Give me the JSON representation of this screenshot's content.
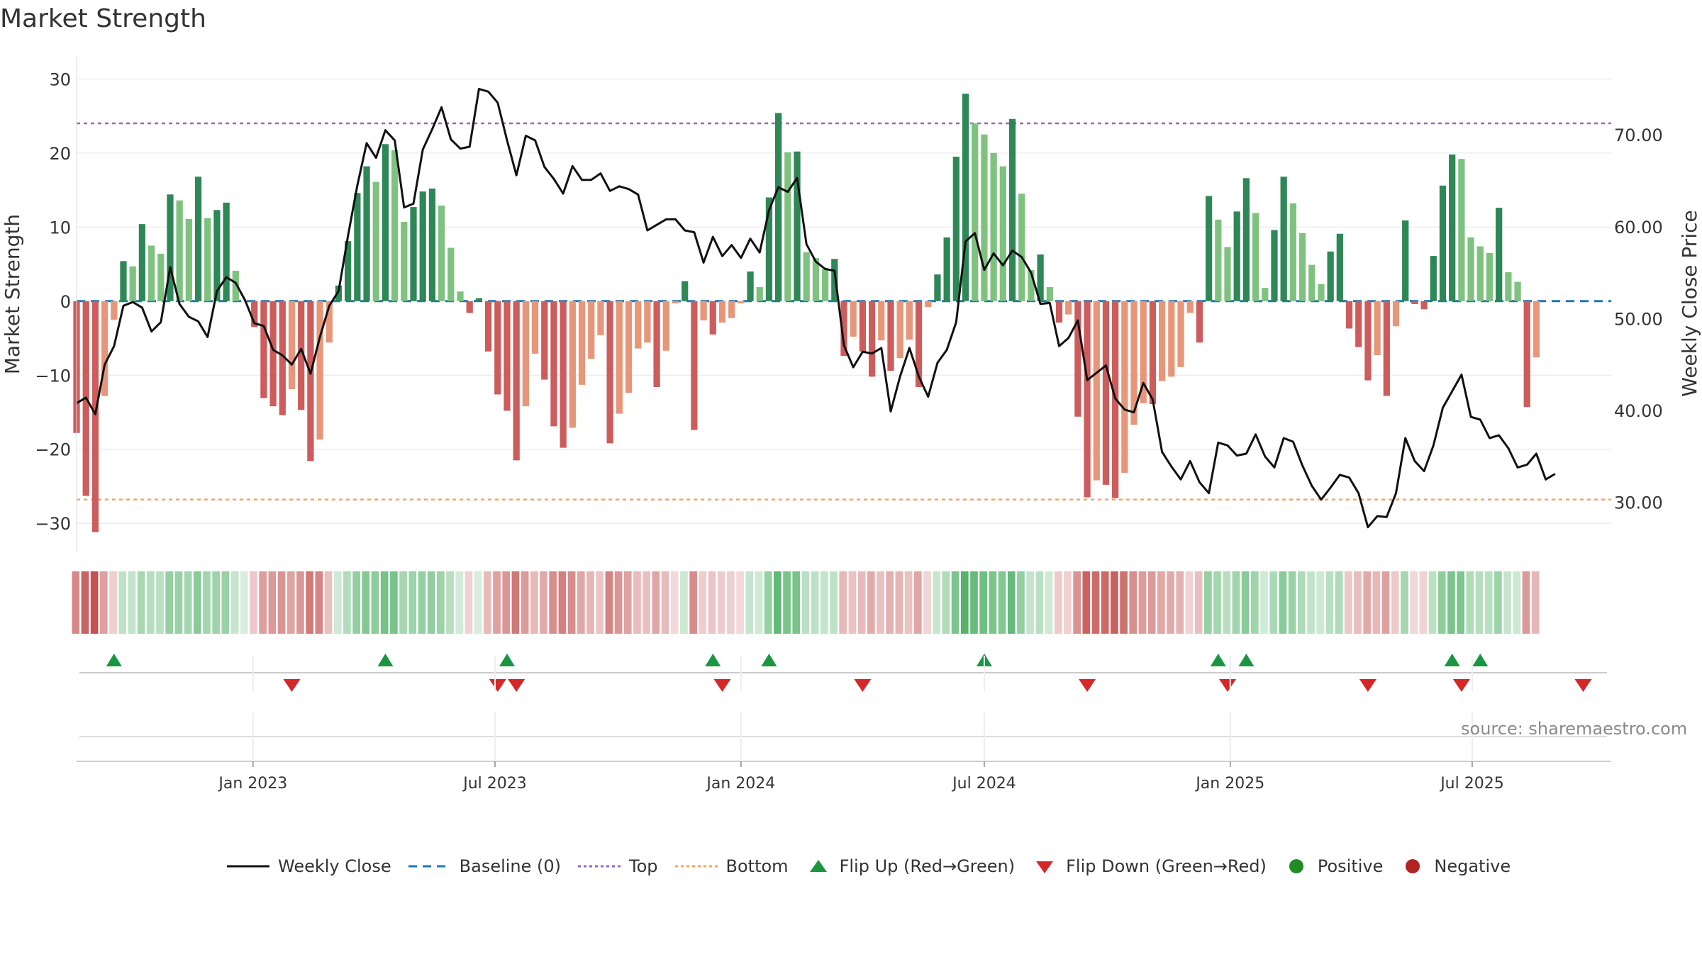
{
  "title": "Market Strength",
  "source": "source: sharemaestro.com",
  "legend": {
    "close": "Weekly Close",
    "baseline": "Baseline (0)",
    "top": "Top",
    "bottom": "Bottom",
    "flip_up": "Flip Up (Red→Green)",
    "flip_down": "Flip Down (Green→Red)",
    "positive": "Positive",
    "negative": "Negative"
  },
  "colors": {
    "pos_strong": "#2e8757",
    "pos_light": "#7fc27f",
    "neg_strong": "#cd5c5c",
    "neg_light": "#e8967a",
    "close": "#111111",
    "baseline": "#1f77b4",
    "top": "#9467bd",
    "bottom": "#f4a460",
    "flip_up": "#1a9641",
    "flip_down": "#d62728",
    "positive_dot": "#228b22",
    "negative_dot": "#b22222"
  },
  "chart_data": {
    "type": "bar",
    "title": "Market Strength",
    "ylabel": "Market Strength",
    "y2label": "Weekly Close Price",
    "ylim": [
      -34,
      33
    ],
    "y2lim": [
      24.5,
      78.5
    ],
    "yticks": [
      -30,
      -20,
      -10,
      0,
      10,
      20,
      30
    ],
    "y2ticks": [
      "30.00",
      "40.00",
      "50.00",
      "60.00",
      "70.00"
    ],
    "y2tick_values": [
      30,
      40,
      50,
      60,
      70
    ],
    "top_level": 24,
    "bottom_level": -26.8,
    "x_axis": {
      "start": "2022-08-22",
      "end": "2025-10-13",
      "ticks": [
        {
          "label": "Jan 2023",
          "date": "2023-01-01"
        },
        {
          "label": "Jul 2023",
          "date": "2023-07-01"
        },
        {
          "label": "Jan 2024",
          "date": "2024-01-01"
        },
        {
          "label": "Jul 2024",
          "date": "2024-07-01"
        },
        {
          "label": "Jan 2025",
          "date": "2025-01-01"
        },
        {
          "label": "Jul 2025",
          "date": "2025-07-01"
        }
      ]
    },
    "weeks": {
      "start": "2022-08-22",
      "step_days": 7,
      "strength": [
        -17.8,
        -26.3,
        -31.2,
        -12.8,
        -2.5,
        5.4,
        4.7,
        10.4,
        7.5,
        6.4,
        14.4,
        13.6,
        11.1,
        16.8,
        11.2,
        12.3,
        13.3,
        4.1,
        0,
        -3.5,
        -13.1,
        -14.2,
        -15.4,
        -11.9,
        -14.7,
        -21.6,
        -18.7,
        -5.6,
        2.1,
        8.1,
        14.6,
        18.2,
        16.1,
        21.2,
        20.4,
        10.7,
        12.7,
        14.8,
        15.2,
        12.9,
        7.2,
        1.3,
        -1.6,
        0.4,
        -6.8,
        -12.6,
        -14.8,
        -21.5,
        -14.2,
        -7.1,
        -10.6,
        -16.9,
        -19.8,
        -17.1,
        -11.3,
        -7.8,
        -4.6,
        -19.2,
        -15.2,
        -12.4,
        -6.4,
        -5.6,
        -11.6,
        -6.7,
        -0.3,
        2.7,
        -17.4,
        -2.6,
        -4.5,
        -2.9,
        -2.3,
        -0.3,
        4.0,
        1.9,
        14.0,
        25.4,
        20.1,
        20.2,
        6.6,
        5.8,
        4.3,
        5.7,
        -7.4,
        -4.8,
        -6.8,
        -10.2,
        -5.3,
        -9.4,
        -7.7,
        -5.2,
        -11.6,
        -0.8,
        3.6,
        8.6,
        19.5,
        28.0,
        24.0,
        22.5,
        20.0,
        18.2,
        24.6,
        14.5,
        4.2,
        6.3,
        1.9,
        -2.9,
        -1.8,
        -15.6,
        -26.5,
        -24.2,
        -24.8,
        -26.6,
        -23.2,
        -16.7,
        -13.8,
        -13.9,
        -10.8,
        -10.2,
        -8.9,
        -1.6,
        -5.6,
        14.2,
        11.0,
        7.3,
        12.1,
        16.6,
        11.9,
        1.8,
        9.6,
        16.8,
        13.2,
        9.2,
        4.9,
        2.3,
        6.7,
        9.1,
        -3.7,
        -6.2,
        -10.7,
        -7.3,
        -12.8,
        -3.4,
        10.9,
        -0.4,
        -1.1,
        6.1,
        15.6,
        19.8,
        19.2,
        8.6,
        7.4,
        6.5,
        12.6,
        3.9,
        2.6,
        -14.3,
        -7.6
      ],
      "close": [
        40.8,
        41.4,
        39.6,
        45.0,
        47.0,
        51.4,
        51.8,
        51.2,
        48.6,
        49.6,
        55.6,
        51.6,
        50.2,
        49.7,
        48.0,
        53.0,
        54.5,
        53.9,
        52.0,
        49.5,
        49.2,
        46.6,
        46.0,
        45.0,
        46.7,
        44.0,
        48.0,
        51.4,
        53.0,
        59.0,
        64.5,
        69.1,
        67.5,
        70.5,
        69.4,
        62.1,
        62.5,
        68.4,
        70.6,
        73.0,
        69.5,
        68.5,
        68.7,
        75.0,
        74.7,
        73.5,
        69.4,
        65.6,
        69.9,
        69.4,
        66.5,
        65.2,
        63.6,
        66.6,
        65.1,
        65.1,
        65.8,
        63.9,
        64.4,
        64.1,
        63.5,
        59.6,
        60.2,
        60.8,
        60.8,
        59.6,
        59.4,
        56.1,
        58.9,
        56.8,
        58.0,
        56.6,
        58.7,
        57.2,
        61.8,
        64.3,
        63.8,
        65.3,
        58.1,
        56.2,
        55.4,
        55.2,
        47.1,
        44.7,
        46.4,
        46.2,
        46.8,
        39.9,
        43.7,
        46.8,
        43.7,
        41.5,
        45.2,
        46.6,
        49.6,
        58.4,
        59.3,
        55.3,
        57.1,
        55.8,
        57.4,
        56.7,
        55.0,
        51.6,
        51.7,
        47.0,
        47.9,
        49.8,
        43.3,
        44.1,
        44.9,
        41.3,
        40.1,
        39.8,
        43.0,
        41.2,
        35.5,
        33.9,
        32.5,
        34.5,
        32.2,
        31.0,
        36.5,
        36.2,
        35.1,
        35.3,
        37.4,
        35.0,
        33.8,
        37.0,
        36.6,
        34.0,
        31.8,
        30.3,
        31.6,
        33.0,
        32.7,
        31.0,
        27.3,
        28.5,
        28.4,
        31.0,
        37.0,
        34.5,
        33.4,
        36.2,
        40.3,
        42.1,
        43.9,
        39.3,
        39.0,
        37.0,
        37.3,
        35.9,
        33.8,
        34.1,
        35.3,
        32.5,
        33.1
      ]
    },
    "flips": {
      "up": [
        "2022-09-19",
        "2023-04-10",
        "2023-07-10",
        "2023-12-11",
        "2024-01-22",
        "2024-07-01",
        "2024-12-23",
        "2025-01-13",
        "2025-06-16",
        "2025-07-07"
      ],
      "down": [
        "2023-01-30",
        "2023-07-03",
        "2023-07-17",
        "2023-12-18",
        "2024-04-01",
        "2024-09-16",
        "2024-12-30",
        "2025-04-14",
        "2025-06-23",
        "2025-09-22"
      ]
    }
  }
}
